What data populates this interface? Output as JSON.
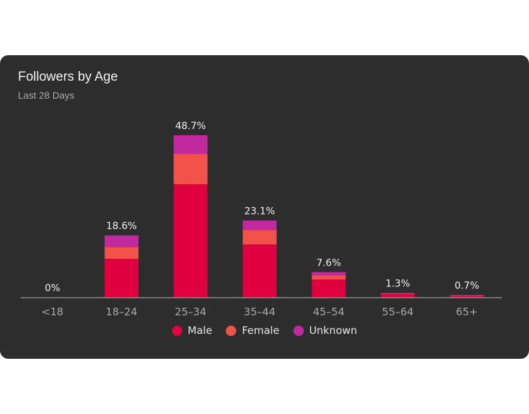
{
  "card": {
    "title": "Followers by Age",
    "subtitle": "Last 28 Days"
  },
  "chart_data": {
    "type": "bar",
    "stacked": true,
    "title": "Followers by Age",
    "subtitle": "Last 28 Days",
    "categories": [
      "<18",
      "18–24",
      "25–34",
      "35–44",
      "45–54",
      "55–64",
      "65+"
    ],
    "totals": [
      "0%",
      "18.6%",
      "48.7%",
      "23.1%",
      "7.6%",
      "1.3%",
      "0.7%"
    ],
    "total_values": [
      0,
      18.6,
      48.7,
      23.1,
      7.6,
      1.3,
      0.7
    ],
    "series": [
      {
        "name": "Male",
        "color": "#e0003f",
        "values": [
          0,
          11.6,
          34.0,
          15.9,
          5.4,
          1.0,
          0.4
        ]
      },
      {
        "name": "Female",
        "color": "#f2524a",
        "values": [
          0,
          3.5,
          9.1,
          4.3,
          1.2,
          0.2,
          0.1
        ]
      },
      {
        "name": "Unknown",
        "color": "#c02a9e",
        "values": [
          0,
          3.5,
          5.6,
          2.9,
          1.0,
          0.1,
          0.2
        ]
      }
    ],
    "ylim": [
      0,
      50
    ],
    "grid": false,
    "legend": "bottom-center",
    "unit": "%"
  }
}
